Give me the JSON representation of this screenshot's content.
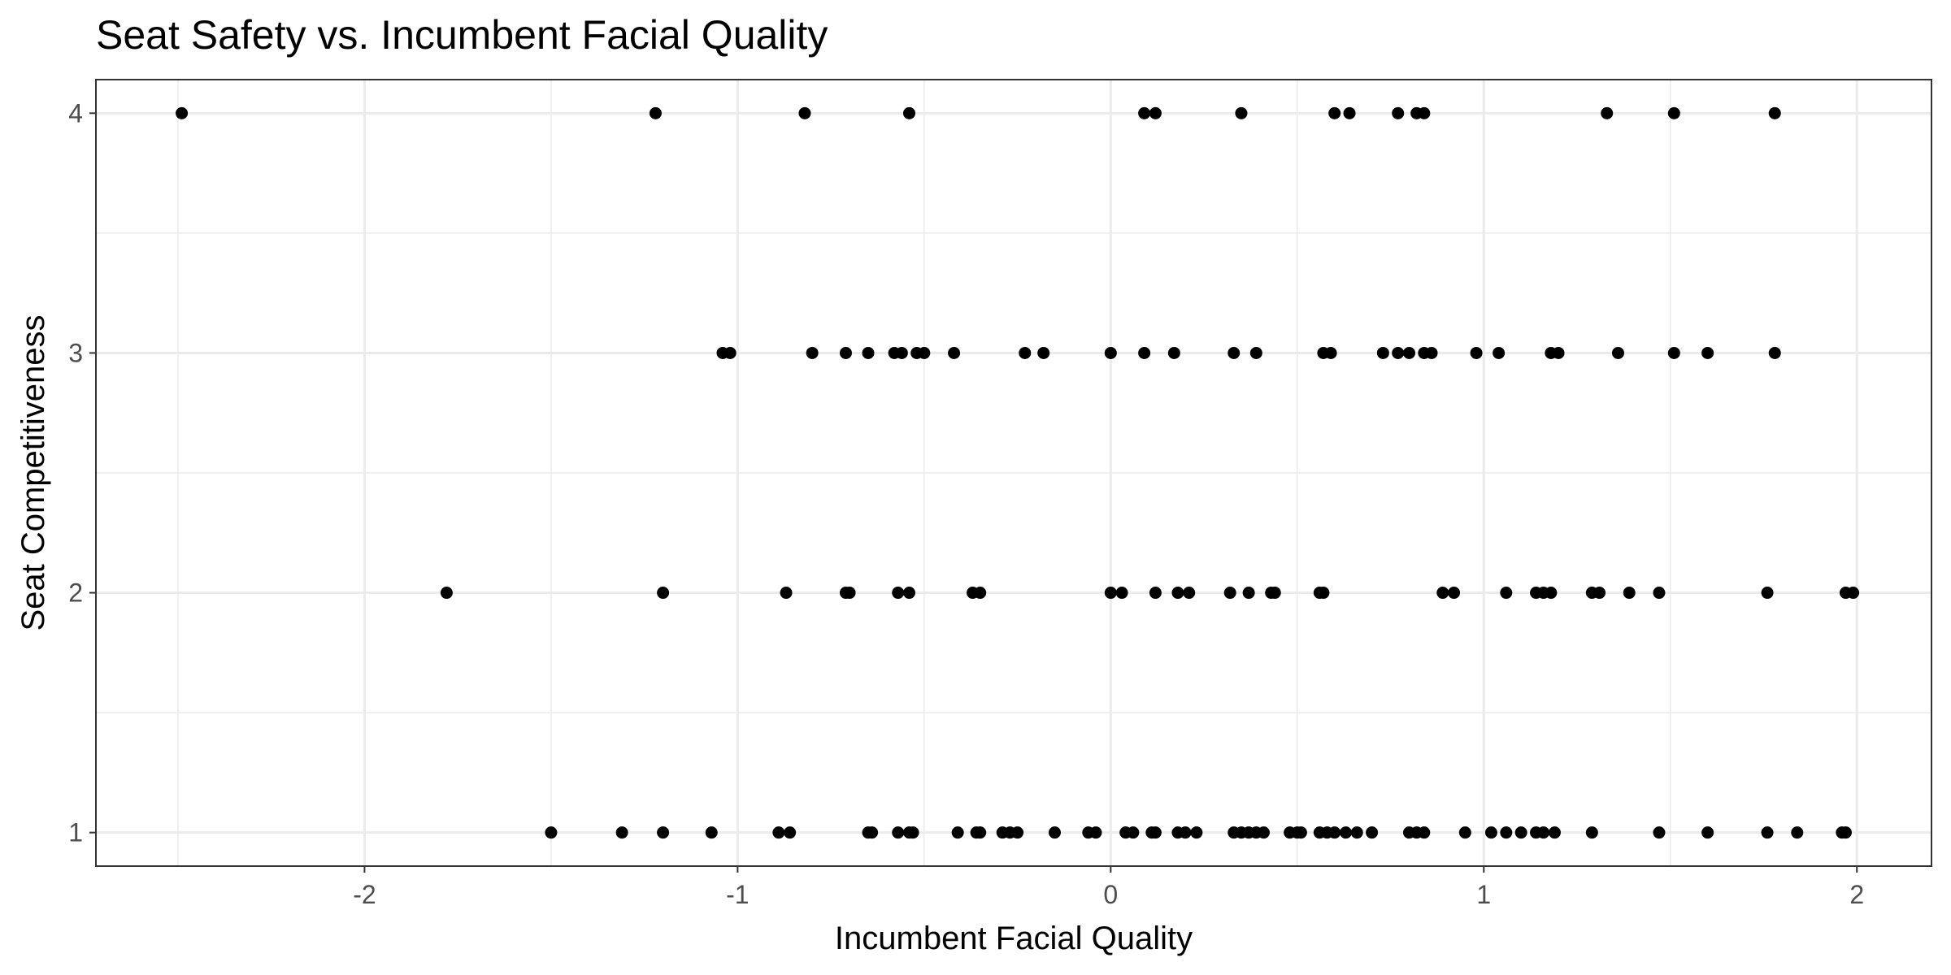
{
  "chart_data": {
    "type": "scatter",
    "title": "Seat Safety vs. Incumbent Facial Quality",
    "xlabel": "Incumbent Facial Quality",
    "ylabel": "Seat Competitiveness",
    "xlim": [
      -2.72,
      2.2
    ],
    "ylim": [
      0.86,
      4.14
    ],
    "x_ticks": [
      -2,
      -1,
      0,
      1,
      2
    ],
    "y_ticks": [
      1,
      2,
      3,
      4
    ],
    "x_tick_labels": [
      "-2",
      "-1",
      "0",
      "1",
      "2"
    ],
    "y_tick_labels": [
      "1",
      "2",
      "3",
      "4"
    ],
    "grid": true,
    "legend": "none",
    "point_color": "#000000",
    "points": [
      {
        "x": -2.49,
        "y": 4
      },
      {
        "x": -1.22,
        "y": 4
      },
      {
        "x": -0.82,
        "y": 4
      },
      {
        "x": -0.54,
        "y": 4
      },
      {
        "x": 0.09,
        "y": 4
      },
      {
        "x": 0.12,
        "y": 4
      },
      {
        "x": 0.35,
        "y": 4
      },
      {
        "x": 0.6,
        "y": 4
      },
      {
        "x": 0.64,
        "y": 4
      },
      {
        "x": 0.77,
        "y": 4
      },
      {
        "x": 0.82,
        "y": 4
      },
      {
        "x": 0.84,
        "y": 4
      },
      {
        "x": 1.33,
        "y": 4
      },
      {
        "x": 1.51,
        "y": 4
      },
      {
        "x": 1.78,
        "y": 4
      },
      {
        "x": -1.04,
        "y": 3
      },
      {
        "x": -1.02,
        "y": 3
      },
      {
        "x": -0.8,
        "y": 3
      },
      {
        "x": -0.71,
        "y": 3
      },
      {
        "x": -0.65,
        "y": 3
      },
      {
        "x": -0.58,
        "y": 3
      },
      {
        "x": -0.56,
        "y": 3
      },
      {
        "x": -0.52,
        "y": 3
      },
      {
        "x": -0.5,
        "y": 3
      },
      {
        "x": -0.42,
        "y": 3
      },
      {
        "x": -0.23,
        "y": 3
      },
      {
        "x": -0.18,
        "y": 3
      },
      {
        "x": 0.0,
        "y": 3
      },
      {
        "x": 0.09,
        "y": 3
      },
      {
        "x": 0.17,
        "y": 3
      },
      {
        "x": 0.33,
        "y": 3
      },
      {
        "x": 0.39,
        "y": 3
      },
      {
        "x": 0.57,
        "y": 3
      },
      {
        "x": 0.59,
        "y": 3
      },
      {
        "x": 0.73,
        "y": 3
      },
      {
        "x": 0.77,
        "y": 3
      },
      {
        "x": 0.8,
        "y": 3
      },
      {
        "x": 0.84,
        "y": 3
      },
      {
        "x": 0.86,
        "y": 3
      },
      {
        "x": 0.98,
        "y": 3
      },
      {
        "x": 1.04,
        "y": 3
      },
      {
        "x": 1.18,
        "y": 3
      },
      {
        "x": 1.2,
        "y": 3
      },
      {
        "x": 1.36,
        "y": 3
      },
      {
        "x": 1.51,
        "y": 3
      },
      {
        "x": 1.6,
        "y": 3
      },
      {
        "x": 1.78,
        "y": 3
      },
      {
        "x": -1.78,
        "y": 2
      },
      {
        "x": -1.2,
        "y": 2
      },
      {
        "x": -0.87,
        "y": 2
      },
      {
        "x": -0.71,
        "y": 2
      },
      {
        "x": -0.7,
        "y": 2
      },
      {
        "x": -0.57,
        "y": 2
      },
      {
        "x": -0.54,
        "y": 2
      },
      {
        "x": -0.37,
        "y": 2
      },
      {
        "x": -0.35,
        "y": 2
      },
      {
        "x": 0.0,
        "y": 2
      },
      {
        "x": 0.03,
        "y": 2
      },
      {
        "x": 0.12,
        "y": 2
      },
      {
        "x": 0.18,
        "y": 2
      },
      {
        "x": 0.21,
        "y": 2
      },
      {
        "x": 0.32,
        "y": 2
      },
      {
        "x": 0.37,
        "y": 2
      },
      {
        "x": 0.43,
        "y": 2
      },
      {
        "x": 0.44,
        "y": 2
      },
      {
        "x": 0.56,
        "y": 2
      },
      {
        "x": 0.57,
        "y": 2
      },
      {
        "x": 0.89,
        "y": 2
      },
      {
        "x": 0.92,
        "y": 2
      },
      {
        "x": 1.06,
        "y": 2
      },
      {
        "x": 1.14,
        "y": 2
      },
      {
        "x": 1.16,
        "y": 2
      },
      {
        "x": 1.18,
        "y": 2
      },
      {
        "x": 1.29,
        "y": 2
      },
      {
        "x": 1.31,
        "y": 2
      },
      {
        "x": 1.39,
        "y": 2
      },
      {
        "x": 1.47,
        "y": 2
      },
      {
        "x": 1.76,
        "y": 2
      },
      {
        "x": 1.97,
        "y": 2
      },
      {
        "x": 1.99,
        "y": 2
      },
      {
        "x": -1.5,
        "y": 1
      },
      {
        "x": -1.31,
        "y": 1
      },
      {
        "x": -1.2,
        "y": 1
      },
      {
        "x": -1.07,
        "y": 1
      },
      {
        "x": -0.89,
        "y": 1
      },
      {
        "x": -0.86,
        "y": 1
      },
      {
        "x": -0.65,
        "y": 1
      },
      {
        "x": -0.64,
        "y": 1
      },
      {
        "x": -0.57,
        "y": 1
      },
      {
        "x": -0.54,
        "y": 1
      },
      {
        "x": -0.53,
        "y": 1
      },
      {
        "x": -0.41,
        "y": 1
      },
      {
        "x": -0.36,
        "y": 1
      },
      {
        "x": -0.35,
        "y": 1
      },
      {
        "x": -0.29,
        "y": 1
      },
      {
        "x": -0.27,
        "y": 1
      },
      {
        "x": -0.25,
        "y": 1
      },
      {
        "x": -0.15,
        "y": 1
      },
      {
        "x": -0.06,
        "y": 1
      },
      {
        "x": -0.04,
        "y": 1
      },
      {
        "x": 0.04,
        "y": 1
      },
      {
        "x": 0.06,
        "y": 1
      },
      {
        "x": 0.11,
        "y": 1
      },
      {
        "x": 0.12,
        "y": 1
      },
      {
        "x": 0.18,
        "y": 1
      },
      {
        "x": 0.2,
        "y": 1
      },
      {
        "x": 0.23,
        "y": 1
      },
      {
        "x": 0.33,
        "y": 1
      },
      {
        "x": 0.35,
        "y": 1
      },
      {
        "x": 0.37,
        "y": 1
      },
      {
        "x": 0.39,
        "y": 1
      },
      {
        "x": 0.41,
        "y": 1
      },
      {
        "x": 0.48,
        "y": 1
      },
      {
        "x": 0.5,
        "y": 1
      },
      {
        "x": 0.51,
        "y": 1
      },
      {
        "x": 0.56,
        "y": 1
      },
      {
        "x": 0.58,
        "y": 1
      },
      {
        "x": 0.6,
        "y": 1
      },
      {
        "x": 0.63,
        "y": 1
      },
      {
        "x": 0.66,
        "y": 1
      },
      {
        "x": 0.7,
        "y": 1
      },
      {
        "x": 0.8,
        "y": 1
      },
      {
        "x": 0.82,
        "y": 1
      },
      {
        "x": 0.84,
        "y": 1
      },
      {
        "x": 0.95,
        "y": 1
      },
      {
        "x": 1.02,
        "y": 1
      },
      {
        "x": 1.06,
        "y": 1
      },
      {
        "x": 1.1,
        "y": 1
      },
      {
        "x": 1.14,
        "y": 1
      },
      {
        "x": 1.16,
        "y": 1
      },
      {
        "x": 1.19,
        "y": 1
      },
      {
        "x": 1.29,
        "y": 1
      },
      {
        "x": 1.47,
        "y": 1
      },
      {
        "x": 1.6,
        "y": 1
      },
      {
        "x": 1.76,
        "y": 1
      },
      {
        "x": 1.84,
        "y": 1
      },
      {
        "x": 1.96,
        "y": 1
      },
      {
        "x": 1.97,
        "y": 1
      }
    ]
  }
}
